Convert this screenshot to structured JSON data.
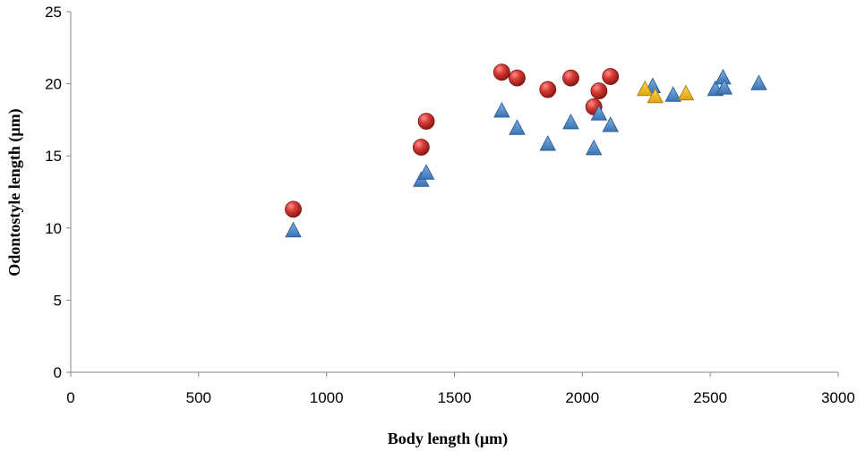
{
  "chart_data": {
    "type": "scatter",
    "title": "",
    "xlabel": "Body length (µm)",
    "ylabel": "Odontostyle length (µm)",
    "xlim": [
      0,
      3000
    ],
    "ylim": [
      0,
      25
    ],
    "xticks": [
      0,
      500,
      1000,
      1500,
      2000,
      2500,
      3000
    ],
    "yticks": [
      0,
      5,
      10,
      15,
      20,
      25
    ],
    "grid": false,
    "legend": "none",
    "series": [
      {
        "marker": "circle",
        "color": "#c9302c",
        "points": [
          {
            "x": 870,
            "y": 11.3
          },
          {
            "x": 1370,
            "y": 15.6
          },
          {
            "x": 1390,
            "y": 17.4
          },
          {
            "x": 1685,
            "y": 20.8
          },
          {
            "x": 1745,
            "y": 20.4
          },
          {
            "x": 1865,
            "y": 19.6
          },
          {
            "x": 1955,
            "y": 20.4
          },
          {
            "x": 2045,
            "y": 18.4
          },
          {
            "x": 2065,
            "y": 19.5
          },
          {
            "x": 2110,
            "y": 20.5
          }
        ]
      },
      {
        "marker": "triangle",
        "color": "#4a86c5",
        "points": [
          {
            "x": 870,
            "y": 9.8
          },
          {
            "x": 1370,
            "y": 13.3
          },
          {
            "x": 1390,
            "y": 13.8
          },
          {
            "x": 1685,
            "y": 18.1
          },
          {
            "x": 1745,
            "y": 16.9
          },
          {
            "x": 1865,
            "y": 15.8
          },
          {
            "x": 1955,
            "y": 17.3
          },
          {
            "x": 2045,
            "y": 15.5
          },
          {
            "x": 2065,
            "y": 17.9
          },
          {
            "x": 2110,
            "y": 17.1
          },
          {
            "x": 2275,
            "y": 19.8
          },
          {
            "x": 2355,
            "y": 19.2
          },
          {
            "x": 2520,
            "y": 19.6
          },
          {
            "x": 2550,
            "y": 20.4
          },
          {
            "x": 2555,
            "y": 19.7
          },
          {
            "x": 2690,
            "y": 20.0
          }
        ]
      },
      {
        "marker": "triangle",
        "color": "#f0b81e",
        "points": [
          {
            "x": 2245,
            "y": 19.6
          },
          {
            "x": 2285,
            "y": 19.1
          },
          {
            "x": 2405,
            "y": 19.3
          }
        ]
      }
    ]
  }
}
